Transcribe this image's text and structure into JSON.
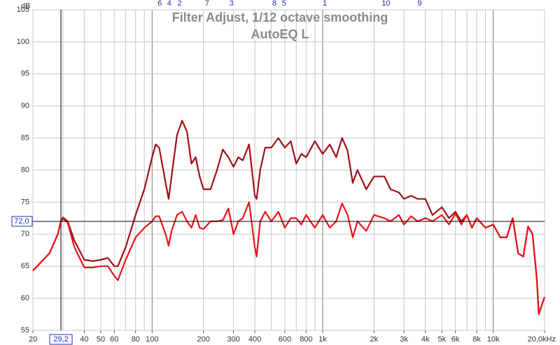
{
  "chart_data": {
    "type": "line",
    "title": "Filter Adjust, 1/12 octave smoothing",
    "subtitle": "AutoEQ L",
    "y_label": "dB",
    "log_x": true,
    "grid": true,
    "xlim": [
      20,
      20000
    ],
    "ylim": [
      55,
      105
    ],
    "yticks": [
      55,
      60,
      65,
      70,
      75,
      80,
      85,
      90,
      95,
      100,
      105
    ],
    "xticks": [
      20,
      40,
      50,
      60,
      80,
      100,
      200,
      300,
      400,
      600,
      800,
      {
        "value": 1000,
        "label": "1k"
      },
      {
        "value": 2000,
        "label": "2k"
      },
      {
        "value": 3000,
        "label": "3k"
      },
      {
        "value": 4000,
        "label": "4k"
      },
      {
        "value": 5000,
        "label": "5k"
      },
      {
        "value": 6000,
        "label": "6k"
      },
      {
        "value": 8000,
        "label": "8k"
      },
      {
        "value": 10000,
        "label": "10k"
      },
      {
        "value": 20000,
        "label": "20,0kHz"
      }
    ],
    "xgrid": [
      20,
      30,
      40,
      50,
      60,
      70,
      80,
      90,
      100,
      200,
      300,
      400,
      500,
      600,
      700,
      800,
      900,
      1000,
      2000,
      3000,
      4000,
      5000,
      6000,
      7000,
      8000,
      9000,
      10000,
      20000
    ],
    "cursor": {
      "x": {
        "value": 29.2,
        "label": "29,2"
      },
      "y": {
        "value": 72.0,
        "label": "72,0"
      }
    },
    "filters": [
      {
        "label": "6",
        "freq": 111
      },
      {
        "label": "4",
        "freq": 126
      },
      {
        "label": "2",
        "freq": 145
      },
      {
        "label": "7",
        "freq": 210
      },
      {
        "label": "3",
        "freq": 292
      },
      {
        "label": "8",
        "freq": 521
      },
      {
        "label": "5",
        "freq": 594
      },
      {
        "label": "1",
        "freq": 1030
      },
      {
        "label": "10",
        "freq": 2350
      },
      {
        "label": "9",
        "freq": 3700
      }
    ],
    "x": [
      20,
      25,
      28,
      29.2,
      30,
      32,
      35,
      40,
      45,
      50,
      55,
      60,
      63,
      70,
      80,
      90,
      100,
      105,
      110,
      120,
      125,
      130,
      140,
      150,
      160,
      170,
      180,
      190,
      200,
      220,
      240,
      260,
      280,
      300,
      320,
      340,
      370,
      400,
      410,
      430,
      460,
      500,
      550,
      600,
      650,
      700,
      750,
      800,
      900,
      1000,
      1100,
      1200,
      1300,
      1400,
      1500,
      1600,
      1800,
      2000,
      2300,
      2500,
      2800,
      3000,
      3300,
      3600,
      4000,
      4400,
      5000,
      5500,
      6000,
      6500,
      7000,
      7500,
      8000,
      9000,
      10000,
      11000,
      12000,
      13000,
      14000,
      15000,
      16000,
      17000,
      18000,
      18500,
      19000,
      20000
    ],
    "series": [
      {
        "color": "#a0101a",
        "values": [
          64.3,
          67,
          70,
          72,
          72.6,
          72,
          69,
          66,
          65.8,
          66,
          66.3,
          65,
          65,
          68,
          73,
          77,
          82,
          84,
          83.5,
          78,
          75.5,
          79,
          85.5,
          87.7,
          86,
          81,
          82,
          79,
          77,
          77,
          80,
          83.2,
          82,
          80.5,
          82,
          81.5,
          84,
          76,
          75.5,
          80,
          83.5,
          83.5,
          85,
          83.5,
          84.5,
          81,
          82.5,
          82,
          84.5,
          82.5,
          84,
          82,
          85,
          83,
          78,
          80,
          77,
          79,
          79,
          77,
          76.5,
          75.5,
          76,
          75.5,
          75.5,
          73,
          74.2,
          72.5,
          73.5,
          72,
          73,
          71,
          72.5,
          71,
          71.5,
          69.5,
          69.5,
          72.5,
          67,
          66.5,
          71.2,
          70,
          63,
          57.5,
          58.5,
          60.2
        ]
      },
      {
        "color": "#e8141c",
        "values": [
          64.3,
          67,
          70,
          72,
          72.4,
          71.8,
          68,
          64.8,
          64.8,
          65,
          65,
          63.5,
          62.8,
          66,
          69.5,
          71,
          72,
          72.8,
          72.8,
          70,
          68.2,
          70.5,
          73,
          73.5,
          72,
          71,
          73,
          71,
          70.8,
          72,
          72,
          72.2,
          74,
          70,
          72,
          72.5,
          75,
          68,
          66.5,
          72,
          73.5,
          72,
          73.5,
          71,
          72.5,
          72.5,
          71.5,
          73,
          71,
          73,
          71,
          72,
          74.8,
          73,
          69.5,
          72,
          70.5,
          73,
          72.5,
          72,
          73,
          71.5,
          72.8,
          72,
          72.5,
          72,
          73,
          71.5,
          73.2,
          71.5,
          73,
          71,
          72.5,
          71,
          71.5,
          69.5,
          69.5,
          72.5,
          67,
          66.5,
          71.2,
          70,
          63,
          57.5,
          58.5,
          60.2
        ]
      }
    ]
  }
}
